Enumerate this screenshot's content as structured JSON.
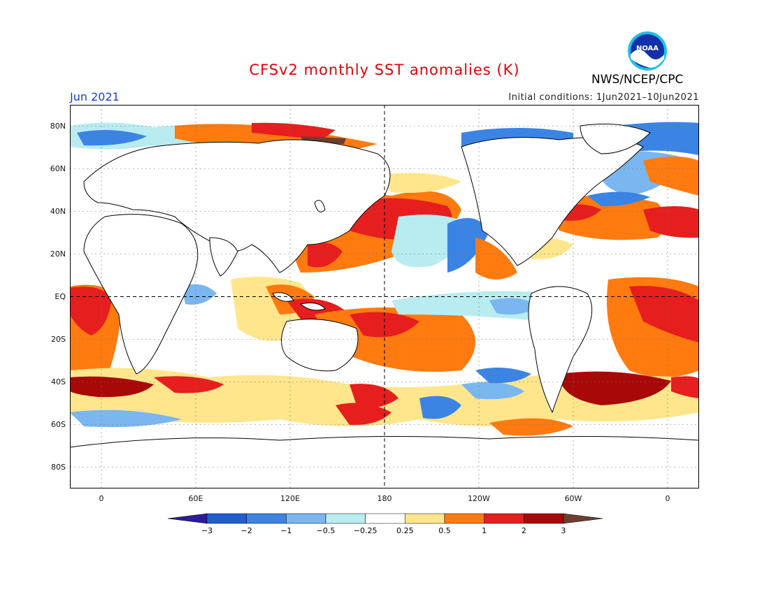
{
  "header": {
    "title": "CFSv2 monthly SST anomalies (K)",
    "title_color": "#e8000b",
    "month": "Jun 2021",
    "month_color": "#1a3fd6",
    "initial_conditions": "Initial conditions: 1Jun2021–10Jun2021",
    "agency": "NWS/NCEP/CPC",
    "logo_text": "NOAA"
  },
  "map": {
    "lat_labels": [
      "80N",
      "60N",
      "40N",
      "20N",
      "EQ",
      "20S",
      "40S",
      "60S",
      "80S"
    ],
    "lat_values": [
      80,
      60,
      40,
      20,
      0,
      -20,
      -40,
      -60,
      -80
    ],
    "lon_labels": [
      "0",
      "60E",
      "120E",
      "180",
      "120W",
      "60W",
      "0"
    ],
    "lon_values": [
      0,
      60,
      120,
      180,
      240,
      300,
      360
    ],
    "lon_range": [
      -20,
      380
    ],
    "lat_range": [
      -90,
      90
    ]
  },
  "colorbar": {
    "tick_labels": [
      "−3",
      "−2",
      "−1",
      "−0.5",
      "−0.25",
      "0.25",
      "0.5",
      "1",
      "2",
      "3"
    ],
    "colors": [
      "#2c1b9c",
      "#1f5fd1",
      "#3b84e3",
      "#7ab6f0",
      "#b8ecf0",
      "#ffffff",
      "#ffe68c",
      "#ff7a0f",
      "#e61e1e",
      "#a80808",
      "#6b4030"
    ]
  },
  "legend_colors": {
    "land": "#ffffff",
    "coast": "#000000",
    "ocean_neutral": "#ffffff"
  }
}
